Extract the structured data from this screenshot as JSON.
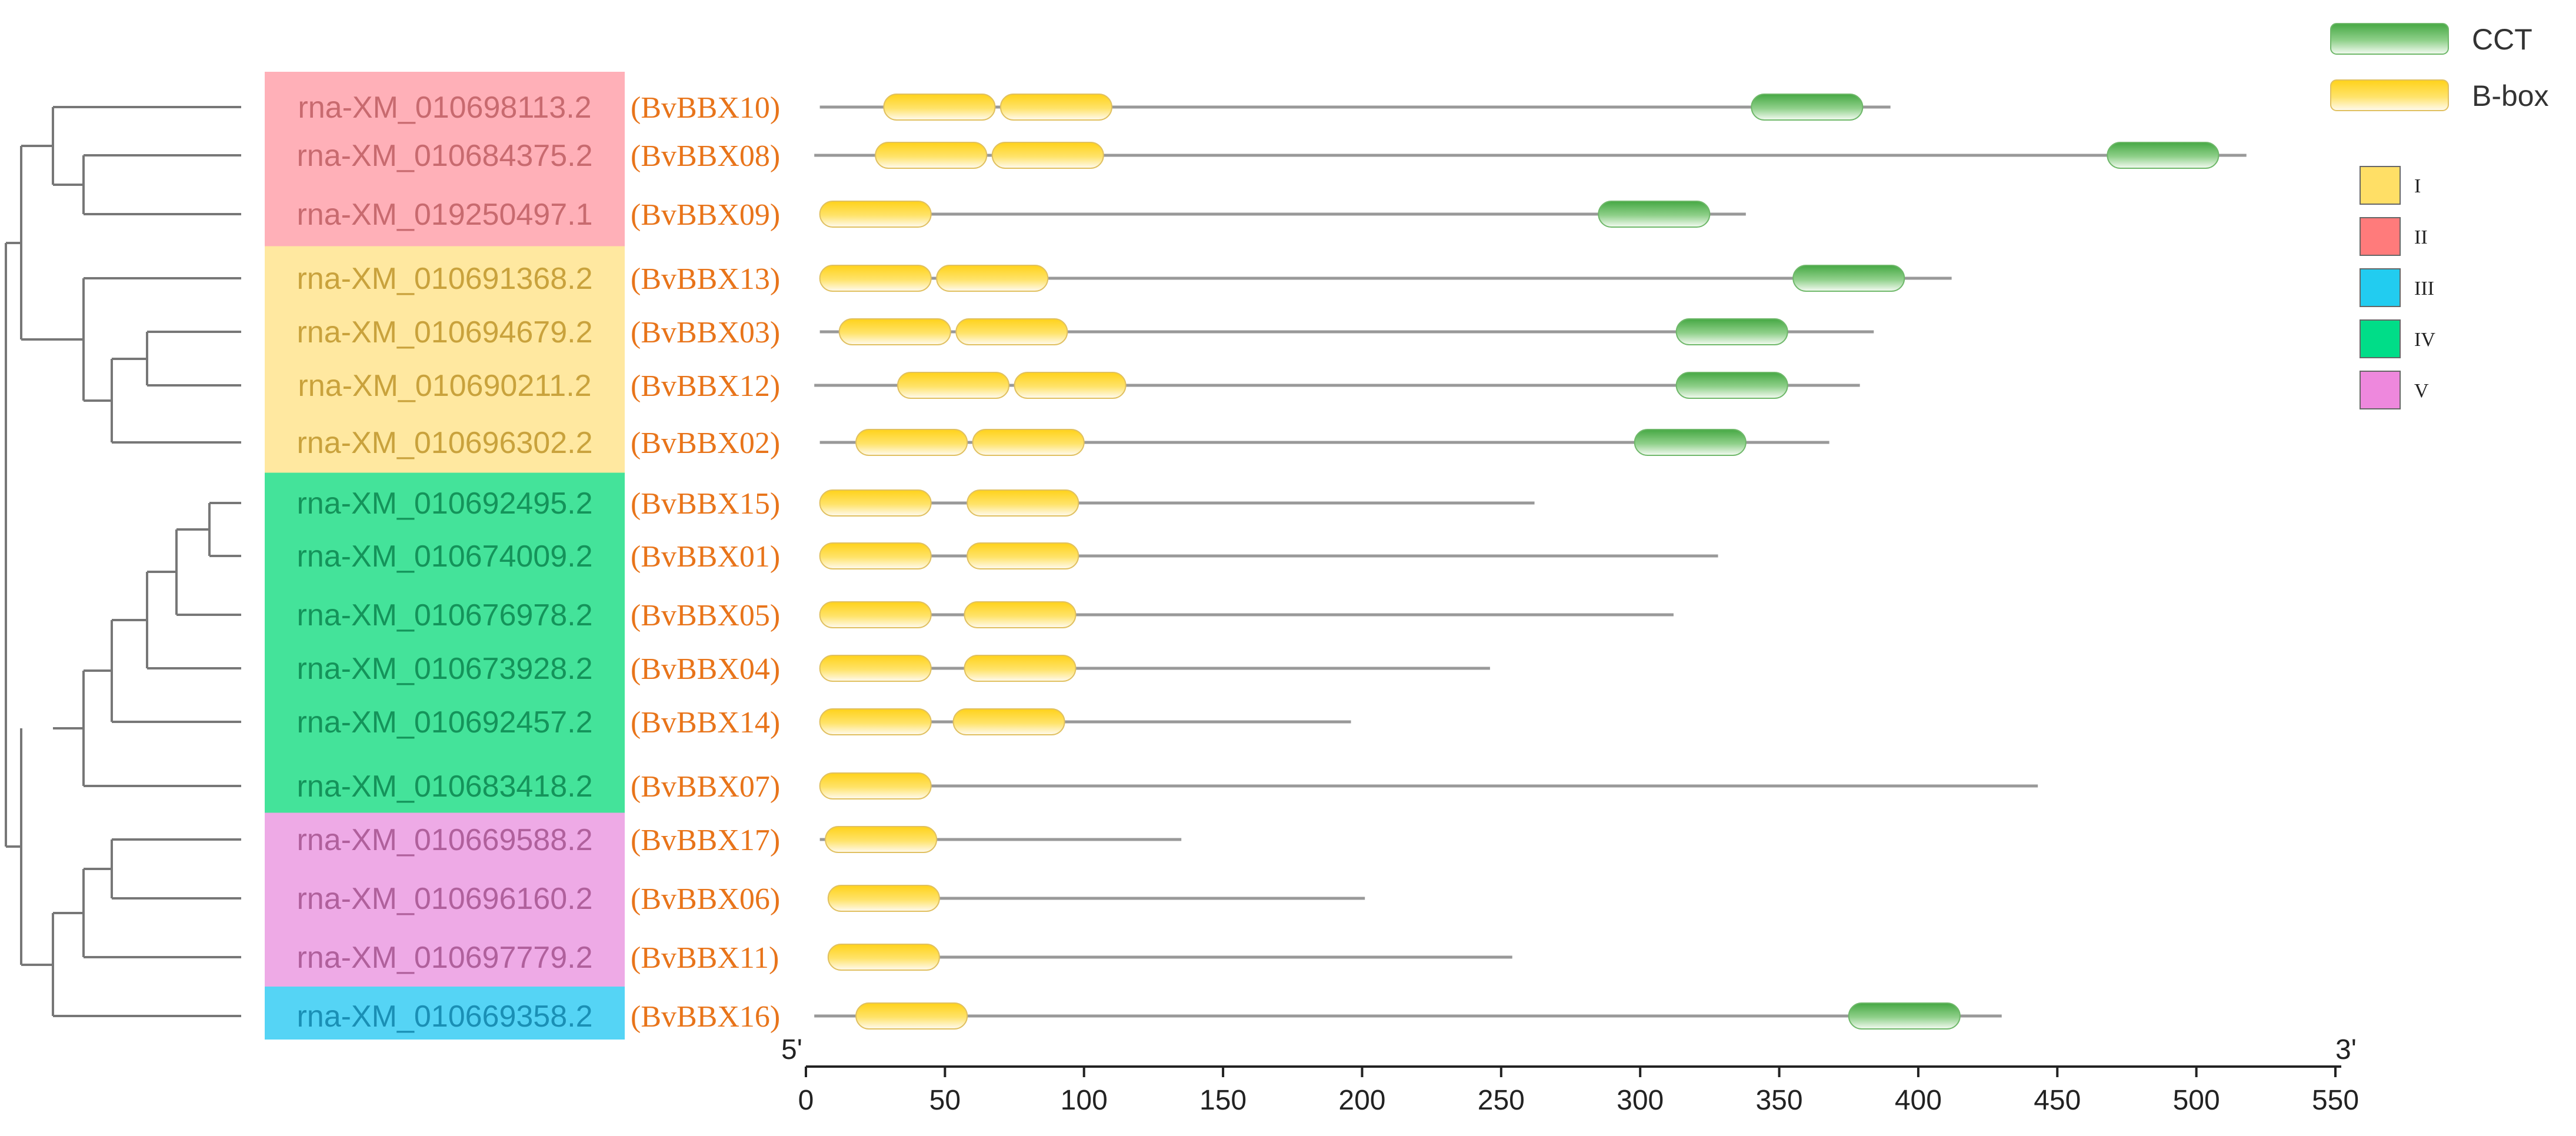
{
  "legend": {
    "domains": [
      {
        "name": "CCT",
        "color": "#5fba5b"
      },
      {
        "name": "B-box",
        "color": "#ffd21a"
      }
    ],
    "groups": [
      {
        "name": "I",
        "color": "#ffdf66"
      },
      {
        "name": "II",
        "color": "#ff7b7b"
      },
      {
        "name": "III",
        "color": "#22ccf0"
      },
      {
        "name": "IV",
        "color": "#00dd88"
      },
      {
        "name": "V",
        "color": "#ee88dd"
      }
    ]
  },
  "axis": {
    "start_label": "5'",
    "end_label": "3'",
    "min": 0,
    "max": 550,
    "ticks": [
      "0",
      "50",
      "100",
      "150",
      "200",
      "250",
      "300",
      "350",
      "400",
      "450",
      "500",
      "550"
    ]
  },
  "group_colors": {
    "I": "#ffe8a0",
    "II": "#ffb0b8",
    "III": "#55d4f5",
    "IV": "#44e39a",
    "V": "#eeaae6"
  },
  "accession_text_colors": {
    "I": "#c9a23c",
    "II": "#c86a6f",
    "III": "#1a8fb5",
    "IV": "#14935a",
    "V": "#b0609c"
  },
  "genes": [
    {
      "acc": "rna-XM_010698113.2",
      "name": "(BvBBX10)",
      "group": "II",
      "start": 5,
      "end": 390,
      "domains": [
        {
          "type": "B-box",
          "start": 28,
          "end": 68
        },
        {
          "type": "B-box",
          "start": 70,
          "end": 110
        },
        {
          "type": "CCT",
          "start": 340,
          "end": 380
        }
      ]
    },
    {
      "acc": "rna-XM_010684375.2",
      "name": "(BvBBX08)",
      "group": "II",
      "start": 3,
      "end": 518,
      "domains": [
        {
          "type": "B-box",
          "start": 25,
          "end": 65
        },
        {
          "type": "B-box",
          "start": 67,
          "end": 107
        },
        {
          "type": "CCT",
          "start": 468,
          "end": 508
        }
      ]
    },
    {
      "acc": "rna-XM_019250497.1",
      "name": "(BvBBX09)",
      "group": "II",
      "start": 5,
      "end": 338,
      "domains": [
        {
          "type": "B-box",
          "start": 5,
          "end": 45
        },
        {
          "type": "CCT",
          "start": 285,
          "end": 325
        }
      ]
    },
    {
      "acc": "rna-XM_010691368.2",
      "name": "(BvBBX13)",
      "group": "I",
      "start": 5,
      "end": 412,
      "domains": [
        {
          "type": "B-box",
          "start": 5,
          "end": 45
        },
        {
          "type": "B-box",
          "start": 47,
          "end": 87
        },
        {
          "type": "CCT",
          "start": 355,
          "end": 395
        }
      ]
    },
    {
      "acc": "rna-XM_010694679.2",
      "name": "(BvBBX03)",
      "group": "I",
      "start": 5,
      "end": 384,
      "domains": [
        {
          "type": "B-box",
          "start": 12,
          "end": 52
        },
        {
          "type": "B-box",
          "start": 54,
          "end": 94
        },
        {
          "type": "CCT",
          "start": 313,
          "end": 353
        }
      ]
    },
    {
      "acc": "rna-XM_010690211.2",
      "name": "(BvBBX12)",
      "group": "I",
      "start": 3,
      "end": 379,
      "domains": [
        {
          "type": "B-box",
          "start": 33,
          "end": 73
        },
        {
          "type": "B-box",
          "start": 75,
          "end": 115
        },
        {
          "type": "CCT",
          "start": 313,
          "end": 353
        }
      ]
    },
    {
      "acc": "rna-XM_010696302.2",
      "name": "(BvBBX02)",
      "group": "I",
      "start": 5,
      "end": 368,
      "domains": [
        {
          "type": "B-box",
          "start": 18,
          "end": 58
        },
        {
          "type": "B-box",
          "start": 60,
          "end": 100
        },
        {
          "type": "CCT",
          "start": 298,
          "end": 338
        }
      ]
    },
    {
      "acc": "rna-XM_010692495.2",
      "name": "(BvBBX15)",
      "group": "IV",
      "start": 5,
      "end": 262,
      "domains": [
        {
          "type": "B-box",
          "start": 5,
          "end": 45
        },
        {
          "type": "B-box",
          "start": 58,
          "end": 98
        }
      ]
    },
    {
      "acc": "rna-XM_010674009.2",
      "name": "(BvBBX01)",
      "group": "IV",
      "start": 5,
      "end": 328,
      "domains": [
        {
          "type": "B-box",
          "start": 5,
          "end": 45
        },
        {
          "type": "B-box",
          "start": 58,
          "end": 98
        }
      ]
    },
    {
      "acc": "rna-XM_010676978.2",
      "name": "(BvBBX05)",
      "group": "IV",
      "start": 5,
      "end": 312,
      "domains": [
        {
          "type": "B-box",
          "start": 5,
          "end": 45
        },
        {
          "type": "B-box",
          "start": 57,
          "end": 97
        }
      ]
    },
    {
      "acc": "rna-XM_010673928.2",
      "name": "(BvBBX04)",
      "group": "IV",
      "start": 5,
      "end": 246,
      "domains": [
        {
          "type": "B-box",
          "start": 5,
          "end": 45
        },
        {
          "type": "B-box",
          "start": 57,
          "end": 97
        }
      ]
    },
    {
      "acc": "rna-XM_010692457.2",
      "name": "(BvBBX14)",
      "group": "IV",
      "start": 5,
      "end": 196,
      "domains": [
        {
          "type": "B-box",
          "start": 5,
          "end": 45
        },
        {
          "type": "B-box",
          "start": 53,
          "end": 93
        }
      ]
    },
    {
      "acc": "rna-XM_010683418.2",
      "name": "(BvBBX07)",
      "group": "IV",
      "start": 5,
      "end": 443,
      "domains": [
        {
          "type": "B-box",
          "start": 5,
          "end": 45
        }
      ]
    },
    {
      "acc": "rna-XM_010669588.2",
      "name": "(BvBBX17)",
      "group": "V",
      "start": 5,
      "end": 135,
      "domains": [
        {
          "type": "B-box",
          "start": 7,
          "end": 47
        }
      ]
    },
    {
      "acc": "rna-XM_010696160.2",
      "name": "(BvBBX06)",
      "group": "V",
      "start": 8,
      "end": 201,
      "domains": [
        {
          "type": "B-box",
          "start": 8,
          "end": 48
        }
      ]
    },
    {
      "acc": "rna-XM_010697779.2",
      "name": "(BvBBX11)",
      "group": "V",
      "start": 8,
      "end": 254,
      "domains": [
        {
          "type": "B-box",
          "start": 8,
          "end": 48
        }
      ]
    },
    {
      "acc": "rna-XM_010669358.2",
      "name": "(BvBBX16)",
      "group": "III",
      "start": 3,
      "end": 430,
      "domains": [
        {
          "type": "B-box",
          "start": 18,
          "end": 58
        },
        {
          "type": "CCT",
          "start": 375,
          "end": 415
        }
      ]
    }
  ]
}
